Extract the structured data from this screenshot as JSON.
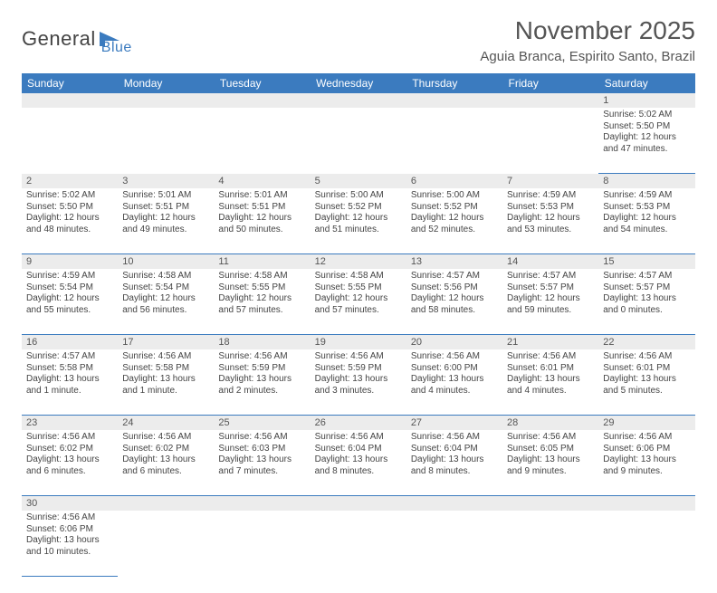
{
  "brand": {
    "name_a": "General",
    "name_b": "Blue",
    "logo_color": "#3b7bbf"
  },
  "title": "November 2025",
  "location": "Aguia Branca, Espirito Santo, Brazil",
  "theme": {
    "header_bg": "#3b7bbf",
    "header_fg": "#ffffff",
    "daynum_bg": "#ececec",
    "rule": "#3b7bbf"
  },
  "day_headers": [
    "Sunday",
    "Monday",
    "Tuesday",
    "Wednesday",
    "Thursday",
    "Friday",
    "Saturday"
  ],
  "weeks": [
    {
      "nums": [
        "",
        "",
        "",
        "",
        "",
        "",
        "1"
      ],
      "cells": [
        null,
        null,
        null,
        null,
        null,
        null,
        {
          "sunrise": "Sunrise: 5:02 AM",
          "sunset": "Sunset: 5:50 PM",
          "day": "Daylight: 12 hours and 47 minutes."
        }
      ]
    },
    {
      "nums": [
        "2",
        "3",
        "4",
        "5",
        "6",
        "7",
        "8"
      ],
      "cells": [
        {
          "sunrise": "Sunrise: 5:02 AM",
          "sunset": "Sunset: 5:50 PM",
          "day": "Daylight: 12 hours and 48 minutes."
        },
        {
          "sunrise": "Sunrise: 5:01 AM",
          "sunset": "Sunset: 5:51 PM",
          "day": "Daylight: 12 hours and 49 minutes."
        },
        {
          "sunrise": "Sunrise: 5:01 AM",
          "sunset": "Sunset: 5:51 PM",
          "day": "Daylight: 12 hours and 50 minutes."
        },
        {
          "sunrise": "Sunrise: 5:00 AM",
          "sunset": "Sunset: 5:52 PM",
          "day": "Daylight: 12 hours and 51 minutes."
        },
        {
          "sunrise": "Sunrise: 5:00 AM",
          "sunset": "Sunset: 5:52 PM",
          "day": "Daylight: 12 hours and 52 minutes."
        },
        {
          "sunrise": "Sunrise: 4:59 AM",
          "sunset": "Sunset: 5:53 PM",
          "day": "Daylight: 12 hours and 53 minutes."
        },
        {
          "sunrise": "Sunrise: 4:59 AM",
          "sunset": "Sunset: 5:53 PM",
          "day": "Daylight: 12 hours and 54 minutes."
        }
      ]
    },
    {
      "nums": [
        "9",
        "10",
        "11",
        "12",
        "13",
        "14",
        "15"
      ],
      "cells": [
        {
          "sunrise": "Sunrise: 4:59 AM",
          "sunset": "Sunset: 5:54 PM",
          "day": "Daylight: 12 hours and 55 minutes."
        },
        {
          "sunrise": "Sunrise: 4:58 AM",
          "sunset": "Sunset: 5:54 PM",
          "day": "Daylight: 12 hours and 56 minutes."
        },
        {
          "sunrise": "Sunrise: 4:58 AM",
          "sunset": "Sunset: 5:55 PM",
          "day": "Daylight: 12 hours and 57 minutes."
        },
        {
          "sunrise": "Sunrise: 4:58 AM",
          "sunset": "Sunset: 5:55 PM",
          "day": "Daylight: 12 hours and 57 minutes."
        },
        {
          "sunrise": "Sunrise: 4:57 AM",
          "sunset": "Sunset: 5:56 PM",
          "day": "Daylight: 12 hours and 58 minutes."
        },
        {
          "sunrise": "Sunrise: 4:57 AM",
          "sunset": "Sunset: 5:57 PM",
          "day": "Daylight: 12 hours and 59 minutes."
        },
        {
          "sunrise": "Sunrise: 4:57 AM",
          "sunset": "Sunset: 5:57 PM",
          "day": "Daylight: 13 hours and 0 minutes."
        }
      ]
    },
    {
      "nums": [
        "16",
        "17",
        "18",
        "19",
        "20",
        "21",
        "22"
      ],
      "cells": [
        {
          "sunrise": "Sunrise: 4:57 AM",
          "sunset": "Sunset: 5:58 PM",
          "day": "Daylight: 13 hours and 1 minute."
        },
        {
          "sunrise": "Sunrise: 4:56 AM",
          "sunset": "Sunset: 5:58 PM",
          "day": "Daylight: 13 hours and 1 minute."
        },
        {
          "sunrise": "Sunrise: 4:56 AM",
          "sunset": "Sunset: 5:59 PM",
          "day": "Daylight: 13 hours and 2 minutes."
        },
        {
          "sunrise": "Sunrise: 4:56 AM",
          "sunset": "Sunset: 5:59 PM",
          "day": "Daylight: 13 hours and 3 minutes."
        },
        {
          "sunrise": "Sunrise: 4:56 AM",
          "sunset": "Sunset: 6:00 PM",
          "day": "Daylight: 13 hours and 4 minutes."
        },
        {
          "sunrise": "Sunrise: 4:56 AM",
          "sunset": "Sunset: 6:01 PM",
          "day": "Daylight: 13 hours and 4 minutes."
        },
        {
          "sunrise": "Sunrise: 4:56 AM",
          "sunset": "Sunset: 6:01 PM",
          "day": "Daylight: 13 hours and 5 minutes."
        }
      ]
    },
    {
      "nums": [
        "23",
        "24",
        "25",
        "26",
        "27",
        "28",
        "29"
      ],
      "cells": [
        {
          "sunrise": "Sunrise: 4:56 AM",
          "sunset": "Sunset: 6:02 PM",
          "day": "Daylight: 13 hours and 6 minutes."
        },
        {
          "sunrise": "Sunrise: 4:56 AM",
          "sunset": "Sunset: 6:02 PM",
          "day": "Daylight: 13 hours and 6 minutes."
        },
        {
          "sunrise": "Sunrise: 4:56 AM",
          "sunset": "Sunset: 6:03 PM",
          "day": "Daylight: 13 hours and 7 minutes."
        },
        {
          "sunrise": "Sunrise: 4:56 AM",
          "sunset": "Sunset: 6:04 PM",
          "day": "Daylight: 13 hours and 8 minutes."
        },
        {
          "sunrise": "Sunrise: 4:56 AM",
          "sunset": "Sunset: 6:04 PM",
          "day": "Daylight: 13 hours and 8 minutes."
        },
        {
          "sunrise": "Sunrise: 4:56 AM",
          "sunset": "Sunset: 6:05 PM",
          "day": "Daylight: 13 hours and 9 minutes."
        },
        {
          "sunrise": "Sunrise: 4:56 AM",
          "sunset": "Sunset: 6:06 PM",
          "day": "Daylight: 13 hours and 9 minutes."
        }
      ]
    },
    {
      "nums": [
        "30",
        "",
        "",
        "",
        "",
        "",
        ""
      ],
      "cells": [
        {
          "sunrise": "Sunrise: 4:56 AM",
          "sunset": "Sunset: 6:06 PM",
          "day": "Daylight: 13 hours and 10 minutes."
        },
        null,
        null,
        null,
        null,
        null,
        null
      ]
    }
  ]
}
